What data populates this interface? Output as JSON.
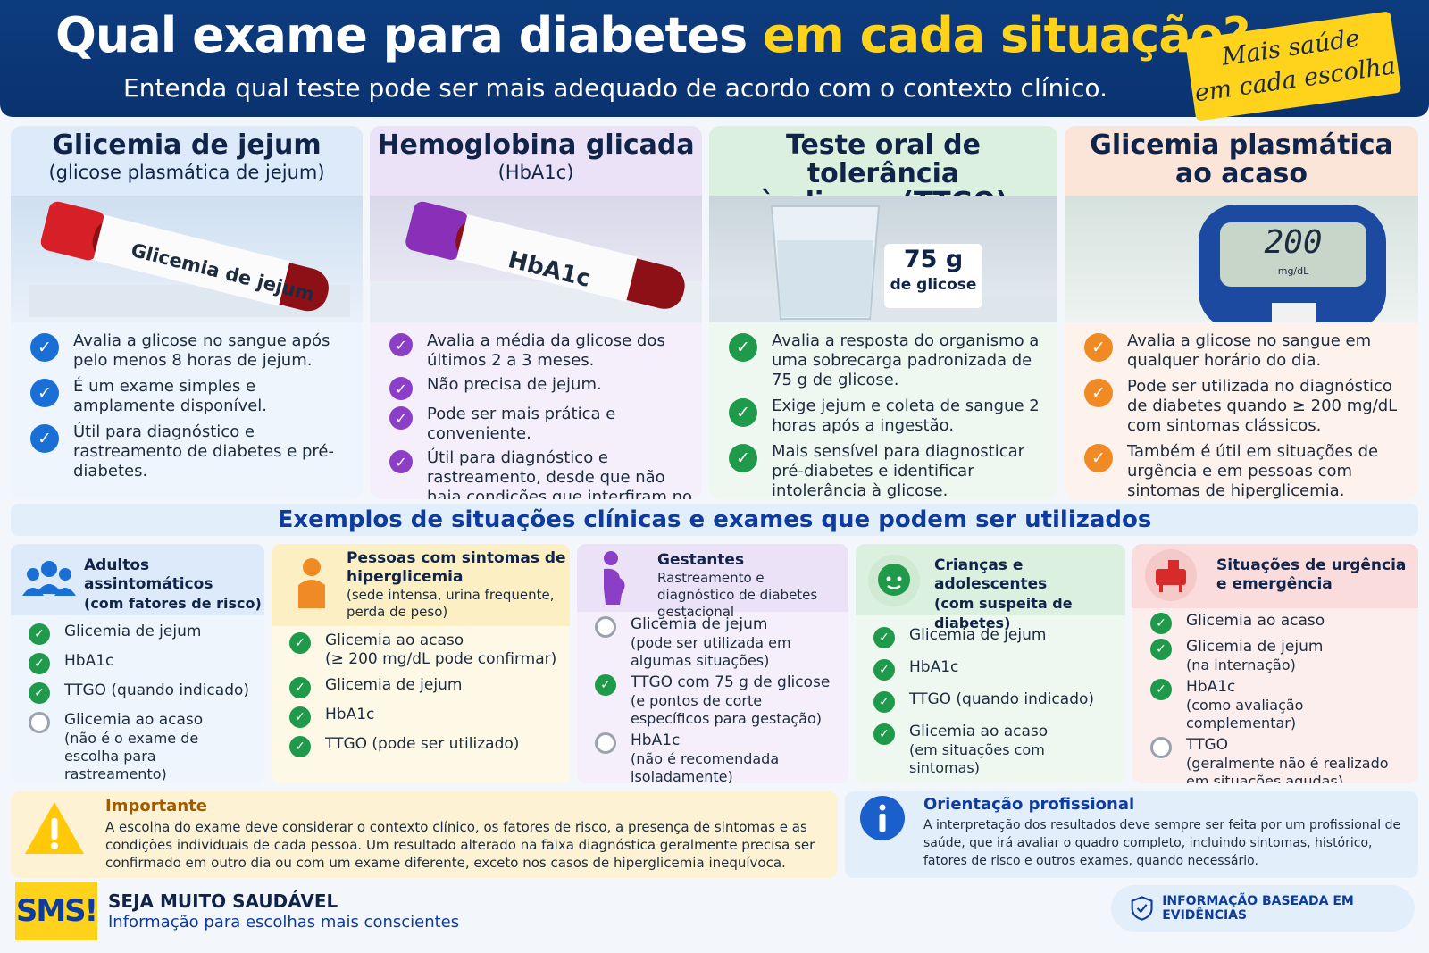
{
  "header": {
    "title_main": "Qual exame para diabetes ",
    "title_highlight": "em cada situação?",
    "subtitle": "Entenda qual teste pode ser mais adequado de acordo com o contexto clínico.",
    "badge_line1": "Mais saúde",
    "badge_line2": "em cada escolha"
  },
  "tests": [
    {
      "title": "Glicemia de jejum",
      "subtitle": "(glicose plasmática de jejum)",
      "tube_label": "Glicemia de jejum",
      "items": [
        "Avalia a glicose no sangue após pelo menos 8 horas de jejum.",
        "É um exame simples e amplamente disponível.",
        "Útil para diagnóstico e rastreamento de diabetes e pré-diabetes."
      ]
    },
    {
      "title": "Hemoglobina glicada",
      "subtitle": "(HbA1c)",
      "tube_label": "HbA1c",
      "items": [
        "Avalia a média da glicose dos últimos 2 a 3 meses.",
        "Não precisa de jejum.",
        "Pode ser mais prática e conveniente.",
        "Útil para diagnóstico e rastreamento, desde que não haja condições que interfiram no resultado."
      ]
    },
    {
      "title": "Teste oral de tolerância",
      "subtitle": "à glicose (TTGO)",
      "glass_label_value": "75 g",
      "glass_label_text": "de glicose",
      "items": [
        "Avalia a resposta do organismo a uma sobrecarga padronizada de 75 g de glicose.",
        "Exige jejum e coleta de sangue 2 horas após a ingestão.",
        "Mais sensível para diagnosticar pré-diabetes e identificar intolerância à glicose."
      ]
    },
    {
      "title": "Glicemia plasmática",
      "subtitle": "ao acaso",
      "meter_value": "200",
      "meter_unit": "mg/dL",
      "items": [
        "Avalia a glicose no sangue em qualquer horário do dia.",
        "Pode ser utilizada no diagnóstico de diabetes quando ≥ 200 mg/dL com sintomas clássicos.",
        "Também é útil em situações de urgência e em pessoas com sintomas de hiperglicemia."
      ]
    }
  ],
  "section_title": "Exemplos de situações clínicas e exames que podem ser utilizados",
  "situations": [
    {
      "title": "Adultos assintomáticos",
      "subtitle": "(com fatores de risco)",
      "items": [
        {
          "text": "Glicemia de jejum",
          "note": "",
          "status": "ok"
        },
        {
          "text": "HbA1c",
          "note": "",
          "status": "ok"
        },
        {
          "text": "TTGO (quando indicado)",
          "note": "",
          "status": "ok"
        },
        {
          "text": "Glicemia ao acaso",
          "note": "(não é o exame de escolha para rastreamento)",
          "status": "off"
        }
      ]
    },
    {
      "title": "Pessoas com sintomas de hiperglicemia",
      "subtitle": "(sede intensa, urina frequente, perda de peso)",
      "items": [
        {
          "text": "Glicemia ao acaso",
          "note": "(≥ 200 mg/dL pode confirmar)",
          "status": "ok"
        },
        {
          "text": "Glicemia de jejum",
          "note": "",
          "status": "ok"
        },
        {
          "text": "HbA1c",
          "note": "",
          "status": "ok"
        },
        {
          "text": "TTGO (pode ser utilizado)",
          "note": "",
          "status": "ok"
        }
      ]
    },
    {
      "title": "Gestantes",
      "subtitle": "Rastreamento e diagnóstico de diabetes gestacional",
      "items": [
        {
          "text": "Glicemia de jejum",
          "note": "(pode ser utilizada em algumas situações)",
          "status": "off"
        },
        {
          "text": "TTGO com 75 g de glicose",
          "note": "(e pontos de corte específicos para gestação)",
          "status": "ok"
        },
        {
          "text": "HbA1c",
          "note": "(não é recomendada isoladamente)",
          "status": "off"
        }
      ]
    },
    {
      "title": "Crianças e adolescentes",
      "subtitle": "(com suspeita de diabetes)",
      "items": [
        {
          "text": "Glicemia de jejum",
          "note": "",
          "status": "ok"
        },
        {
          "text": "HbA1c",
          "note": "",
          "status": "ok"
        },
        {
          "text": "TTGO (quando indicado)",
          "note": "",
          "status": "ok"
        },
        {
          "text": "Glicemia ao acaso",
          "note": "(em situações com sintomas)",
          "status": "ok"
        }
      ]
    },
    {
      "title": "Situações de urgência e emergência",
      "subtitle": "",
      "items": [
        {
          "text": "Glicemia ao acaso",
          "note": "",
          "status": "ok"
        },
        {
          "text": "Glicemia de jejum",
          "note": "(na internação)",
          "status": "ok"
        },
        {
          "text": "HbA1c",
          "note": "(como avaliação complementar)",
          "status": "ok"
        },
        {
          "text": "TTGO",
          "note": "(geralmente não é realizado em situações agudas)",
          "status": "off"
        }
      ]
    }
  ],
  "important": {
    "title": "Importante",
    "text": "A escolha do exame deve considerar o contexto clínico, os fatores de risco, a presença de sintomas e as condições individuais de cada pessoa. Um resultado alterado na faixa diagnóstica geralmente precisa ser confirmado em outro dia ou com um exame diferente, exceto nos casos de hiperglicemia inequívoca."
  },
  "guidance": {
    "title": "Orientação profissional",
    "text": "A interpretação dos resultados deve sempre ser feita por um profissional de saúde, que irá avaliar o quadro completo, incluindo sintomas, histórico, fatores de risco e outros exames, quando necessário."
  },
  "footer": {
    "logo": "SMS!",
    "name": "SEJA MUITO SAUDÁVEL",
    "tagline": "Informação para escolhas mais conscientes",
    "evidence": "INFORMAÇÃO BASEADA EM EVIDÊNCIAS"
  },
  "colors": {
    "blue": "#1a6fd6",
    "purple": "#8a3fc6",
    "green": "#1e9a4a",
    "orange": "#f08a24",
    "navy": "#0d3c7e",
    "yellow": "#ffd21c"
  },
  "icons": [
    "check-icon",
    "group-icon",
    "person-icon",
    "pregnant-icon",
    "child-icon",
    "ambulance-icon",
    "warning-icon",
    "info-icon",
    "shield-icon"
  ]
}
